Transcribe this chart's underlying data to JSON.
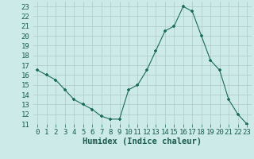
{
  "x": [
    0,
    1,
    2,
    3,
    4,
    5,
    6,
    7,
    8,
    9,
    10,
    11,
    12,
    13,
    14,
    15,
    16,
    17,
    18,
    19,
    20,
    21,
    22,
    23
  ],
  "y": [
    16.5,
    16.0,
    15.5,
    14.5,
    13.5,
    13.0,
    12.5,
    11.8,
    11.5,
    11.5,
    14.5,
    15.0,
    16.5,
    18.5,
    20.5,
    21.0,
    23.0,
    22.5,
    20.0,
    17.5,
    16.5,
    13.5,
    12.0,
    11.0
  ],
  "line_color": "#1a6b5a",
  "marker": "+",
  "bg_color": "#cceae8",
  "grid_color": "#b0c8c8",
  "xlabel": "Humidex (Indice chaleur)",
  "xlim": [
    -0.5,
    23.5
  ],
  "ylim": [
    11,
    23.5
  ],
  "xticks": [
    0,
    1,
    2,
    3,
    4,
    5,
    6,
    7,
    8,
    9,
    10,
    11,
    12,
    13,
    14,
    15,
    16,
    17,
    18,
    19,
    20,
    21,
    22,
    23
  ],
  "yticks": [
    11,
    12,
    13,
    14,
    15,
    16,
    17,
    18,
    19,
    20,
    21,
    22,
    23
  ],
  "font_color": "#1a5c50",
  "tick_font_size": 6.5,
  "label_font_size": 7.5
}
